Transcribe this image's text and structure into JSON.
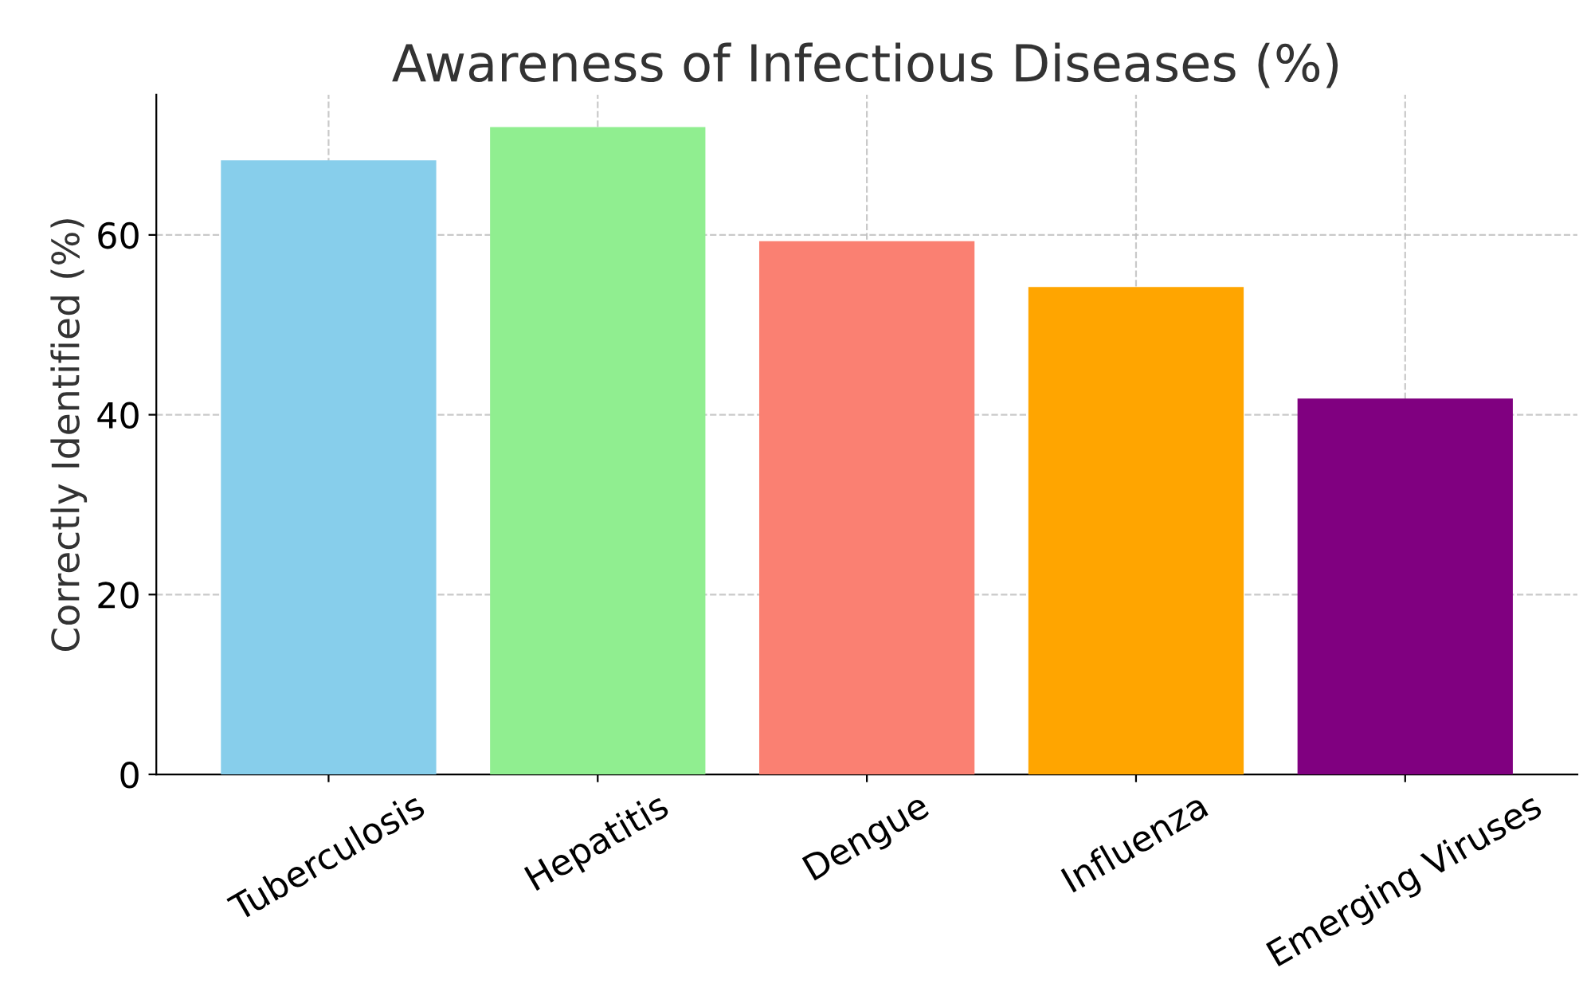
{
  "chart_data": {
    "type": "bar",
    "title": "Awareness of Infectious Diseases (%)",
    "ylabel": "Correctly Identified (%)",
    "categories": [
      "Tuberculosis",
      "Hepatitis",
      "Dengue",
      "Influenza",
      "Emerging Viruses"
    ],
    "values": [
      68.3,
      72.0,
      59.3,
      54.2,
      41.8
    ],
    "colors": [
      "#87ceeb",
      "#90ee90",
      "#fa8072",
      "#ffa500",
      "#800080"
    ],
    "ylim": [
      0,
      75.6
    ],
    "yticks": [
      0,
      20,
      40,
      60
    ],
    "grid": true,
    "line_style": "dashed"
  }
}
